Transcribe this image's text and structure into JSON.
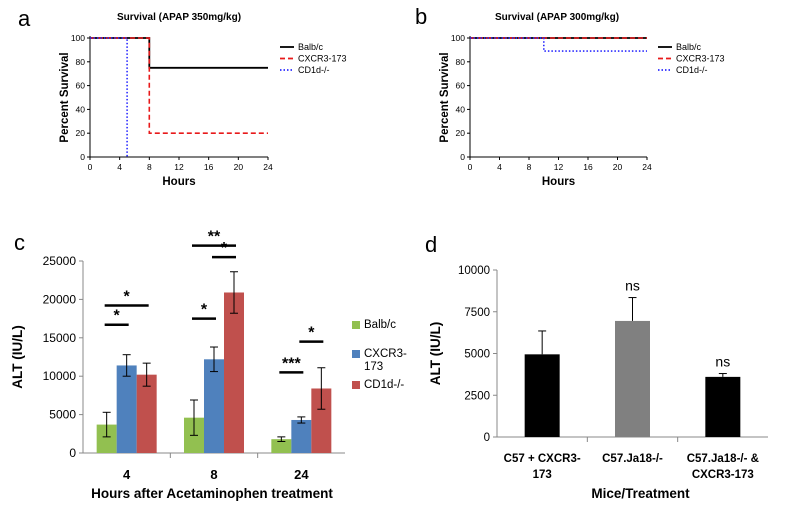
{
  "figure": {
    "panel_letters": [
      "a",
      "b",
      "c",
      "d"
    ]
  },
  "chart_data": [
    {
      "panel": "a",
      "type": "line",
      "title": "Survival (APAP 350mg/kg)",
      "xlabel": "Hours",
      "ylabel": "Percent  Survival",
      "xlim": [
        0,
        24
      ],
      "ylim": [
        0,
        100
      ],
      "xticks": [
        0,
        4,
        8,
        12,
        16,
        20,
        24
      ],
      "yticks": [
        0,
        20,
        40,
        60,
        80,
        100
      ],
      "legend_position": "top-right",
      "series": [
        {
          "name": "Balb/c",
          "color": "#000000",
          "dash": "solid",
          "points": [
            [
              0,
              100
            ],
            [
              8,
              100
            ],
            [
              8,
              75
            ],
            [
              24,
              75
            ]
          ]
        },
        {
          "name": "CXCR3-173",
          "color": "#e8191a",
          "dash": "dashed",
          "points": [
            [
              0,
              100
            ],
            [
              8,
              100
            ],
            [
              8,
              20
            ],
            [
              24,
              20
            ]
          ]
        },
        {
          "name": "CD1d-/-",
          "color": "#2a2aff",
          "dash": "dotted",
          "points": [
            [
              0,
              100
            ],
            [
              5,
              100
            ],
            [
              5,
              0
            ]
          ]
        }
      ]
    },
    {
      "panel": "b",
      "type": "line",
      "title": "Survival (APAP 300mg/kg)",
      "xlabel": "Hours",
      "ylabel": "Percent  Survival",
      "xlim": [
        0,
        24
      ],
      "ylim": [
        0,
        100
      ],
      "xticks": [
        0,
        4,
        8,
        12,
        16,
        20,
        24
      ],
      "yticks": [
        0,
        20,
        40,
        60,
        80,
        100
      ],
      "legend_position": "top-right",
      "series": [
        {
          "name": "Balb/c",
          "color": "#000000",
          "dash": "solid",
          "points": [
            [
              0,
              100
            ],
            [
              24,
              100
            ]
          ]
        },
        {
          "name": "CXCR3-173",
          "color": "#e8191a",
          "dash": "dashed",
          "points": [
            [
              0,
              100
            ],
            [
              24,
              100
            ]
          ]
        },
        {
          "name": "CD1d-/-",
          "color": "#2a2aff",
          "dash": "dotted",
          "points": [
            [
              0,
              100
            ],
            [
              10,
              100
            ],
            [
              10,
              89
            ],
            [
              24,
              89
            ]
          ]
        }
      ]
    },
    {
      "panel": "c",
      "type": "bar",
      "title": "",
      "xlabel": "Hours after Acetaminophen treatment",
      "ylabel": "ALT (IU/L)",
      "ylim": [
        0,
        25000
      ],
      "yticks": [
        0,
        5000,
        10000,
        15000,
        20000,
        25000
      ],
      "categories": [
        "4",
        "8",
        "24"
      ],
      "legend_position": "right",
      "series": [
        {
          "name": "Balb/c",
          "color": "#92c050",
          "values": [
            3700,
            4600,
            1800
          ],
          "errors": [
            1600,
            2300,
            300
          ]
        },
        {
          "name": "CXCR3-173",
          "color": "#4f81bd",
          "values": [
            11400,
            12200,
            4300
          ],
          "errors": [
            1400,
            1600,
            400
          ]
        },
        {
          "name": "CD1d-/-",
          "color": "#c0504d",
          "values": [
            10200,
            20900,
            8400
          ],
          "errors": [
            1500,
            2700,
            2700
          ]
        }
      ],
      "significance": [
        {
          "label": "*",
          "category": "4",
          "from": "Balb/c",
          "to": "CXCR3-173",
          "level": 16700
        },
        {
          "label": "*",
          "category": "4",
          "from": "Balb/c",
          "to": "CD1d-/-",
          "level": 19200
        },
        {
          "label": "*",
          "category": "8",
          "from": "Balb/c",
          "to": "CXCR3-173",
          "level": 17500
        },
        {
          "label": "**",
          "category": "8",
          "from": "Balb/c",
          "to": "CD1d-/-",
          "level": 27000
        },
        {
          "label": "*",
          "category": "8",
          "from": "CXCR3-173",
          "to": "CD1d-/-",
          "level": 25500
        },
        {
          "label": "***",
          "category": "24",
          "from": "Balb/c",
          "to": "CXCR3-173",
          "level": 10500
        },
        {
          "label": "*",
          "category": "24",
          "from": "CXCR3-173",
          "to": "CD1d-/-",
          "level": 14500
        }
      ]
    },
    {
      "panel": "d",
      "type": "bar",
      "title": "",
      "xlabel": "Mice/Treatment",
      "ylabel": "ALT (IU/L)",
      "ylim": [
        0,
        10000
      ],
      "yticks": [
        0,
        2500,
        5000,
        7500,
        10000
      ],
      "categories": [
        [
          "C57 + CXCR3-",
          "173"
        ],
        [
          "C57.Ja18-/-"
        ],
        [
          "C57.Ja18-/- &",
          "CXCR3-173"
        ]
      ],
      "values": [
        4950,
        6950,
        3600
      ],
      "errors": [
        1400,
        1400,
        200
      ],
      "colors": [
        "#000000",
        "#808080",
        "#000000"
      ],
      "annotations": [
        "",
        "ns",
        "ns"
      ]
    }
  ]
}
